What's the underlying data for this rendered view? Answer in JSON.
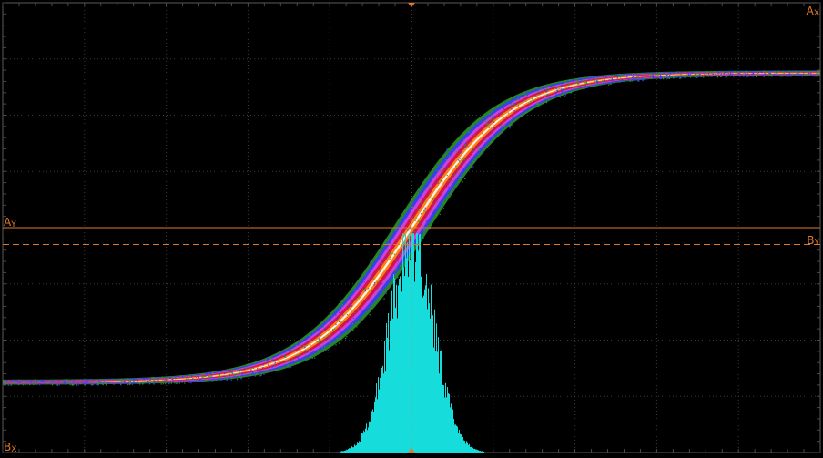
{
  "chart_data": {
    "type": "scatter",
    "title": "",
    "xlabel": "",
    "ylabel": "",
    "grid": true,
    "grid_divisions": {
      "x": 10,
      "y": 8
    },
    "xlim": [
      -5,
      5
    ],
    "ylim": [
      -4,
      4
    ],
    "series": [
      {
        "kind": "persistence-trace",
        "shape": "sigmoid",
        "low_level": -2.75,
        "high_level": 2.75,
        "center_x": 0.0,
        "center_y": 0.0,
        "steepness": 1.15,
        "band_spread": 0.18,
        "color_scale": [
          "#2a9d2a",
          "#3a3aff",
          "#e040e0",
          "#d0103a",
          "#ff8c10",
          "#ffffff"
        ]
      },
      {
        "kind": "histogram",
        "color": "#16dcdc",
        "axis": "x",
        "center_x": 0.0,
        "sigma": 0.27,
        "peak_height_div": 3.9,
        "baseline_div": -4.0
      }
    ],
    "cursors": {
      "AY": {
        "y": 0.0
      },
      "BY": {
        "y": -0.3
      },
      "AX": {
        "x": 0.0
      },
      "BX": {
        "x": 0.0
      }
    },
    "cursor_labels": {
      "ax": "A",
      "ax_sub": "X",
      "ay": "A",
      "ay_sub": "Y",
      "by": "B",
      "by_sub": "Y",
      "bx": "B",
      "bx_sub": "X"
    },
    "colors": {
      "background": "#000000",
      "grid": "#3a3a3a",
      "frame": "#5a5a5a",
      "cursor": "#e07a2a"
    }
  }
}
